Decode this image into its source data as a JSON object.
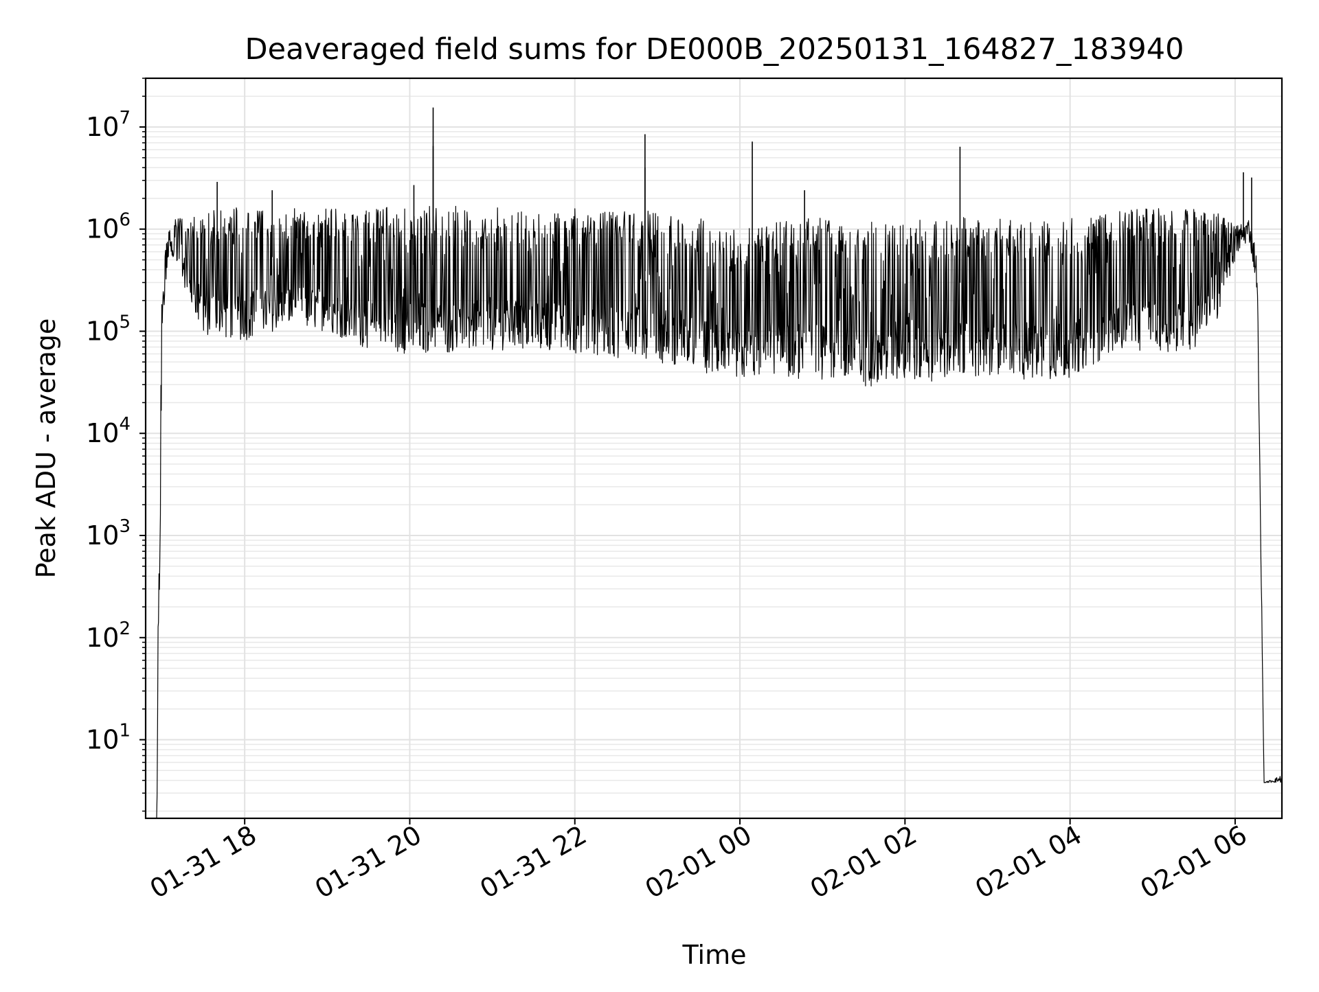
{
  "chart_data": {
    "type": "line",
    "title": "Deaveraged field sums for DE000B_20250131_164827_183940",
    "xlabel": "Time",
    "ylabel": "Peak ADU - average",
    "yscale": "log",
    "ylim": [
      1.7,
      30000000
    ],
    "xlim": [
      "2025-01-31 16:48",
      "2025-02-01 06:34"
    ],
    "grid": "major and minor",
    "legend": "none",
    "line_color": "#000000",
    "x_ticks": [
      {
        "t": "2025-01-31 18:00",
        "label": "01-31 18"
      },
      {
        "t": "2025-01-31 20:00",
        "label": "01-31 20"
      },
      {
        "t": "2025-01-31 22:00",
        "label": "01-31 22"
      },
      {
        "t": "2025-02-01 00:00",
        "label": "02-01 00"
      },
      {
        "t": "2025-02-01 02:00",
        "label": "02-01 02"
      },
      {
        "t": "2025-02-01 04:00",
        "label": "02-01 04"
      },
      {
        "t": "2025-02-01 06:00",
        "label": "02-01 06"
      }
    ],
    "y_ticks": [
      {
        "value": 10,
        "base": "10",
        "exp": "1"
      },
      {
        "value": 100,
        "base": "10",
        "exp": "2"
      },
      {
        "value": 1000,
        "base": "10",
        "exp": "3"
      },
      {
        "value": 10000,
        "base": "10",
        "exp": "4"
      },
      {
        "value": 100000,
        "base": "10",
        "exp": "5"
      },
      {
        "value": 1000000,
        "base": "10",
        "exp": "6"
      },
      {
        "value": 10000000,
        "base": "10",
        "exp": "7"
      }
    ],
    "series": [
      {
        "color": "#000000",
        "envelope": [
          {
            "t": "2025-01-31 16:56",
            "low": 1.7,
            "high": 1.7
          },
          {
            "t": "2025-01-31 16:57",
            "low": 3.8,
            "high": 140
          },
          {
            "t": "2025-01-31 17:00",
            "low": 100000,
            "high": 500000
          },
          {
            "t": "2025-01-31 17:05",
            "low": 600000,
            "high": 1200000
          },
          {
            "t": "2025-01-31 17:15",
            "low": 300000,
            "high": 1300000
          },
          {
            "t": "2025-01-31 17:30",
            "low": 90000,
            "high": 1500000
          },
          {
            "t": "2025-01-31 18:00",
            "low": 80000,
            "high": 1700000
          },
          {
            "t": "2025-01-31 18:30",
            "low": 110000,
            "high": 1600000
          },
          {
            "t": "2025-01-31 19:00",
            "low": 100000,
            "high": 1600000
          },
          {
            "t": "2025-01-31 19:30",
            "low": 65000,
            "high": 1600000
          },
          {
            "t": "2025-01-31 20:00",
            "low": 60000,
            "high": 1700000
          },
          {
            "t": "2025-01-31 20:30",
            "low": 60000,
            "high": 1700000
          },
          {
            "t": "2025-01-31 21:00",
            "low": 65000,
            "high": 1650000
          },
          {
            "t": "2025-01-31 21:30",
            "low": 65000,
            "high": 1600000
          },
          {
            "t": "2025-01-31 22:00",
            "low": 60000,
            "high": 1600000
          },
          {
            "t": "2025-01-31 22:30",
            "low": 55000,
            "high": 1500000
          },
          {
            "t": "2025-01-31 23:00",
            "low": 50000,
            "high": 1500000
          },
          {
            "t": "2025-01-31 23:30",
            "low": 40000,
            "high": 1400000
          },
          {
            "t": "2025-01-31 23:45",
            "low": 35000,
            "high": 1000000
          },
          {
            "t": "2025-02-01 00:00",
            "low": 32000,
            "high": 1000000
          },
          {
            "t": "2025-02-01 00:30",
            "low": 35000,
            "high": 1200000
          },
          {
            "t": "2025-02-01 01:00",
            "low": 33000,
            "high": 1300000
          },
          {
            "t": "2025-02-01 01:30",
            "low": 28000,
            "high": 1200000
          },
          {
            "t": "2025-02-01 02:00",
            "low": 33000,
            "high": 1200000
          },
          {
            "t": "2025-02-01 02:30",
            "low": 32000,
            "high": 1300000
          },
          {
            "t": "2025-02-01 03:00",
            "low": 35000,
            "high": 1300000
          },
          {
            "t": "2025-02-01 03:30",
            "low": 32000,
            "high": 1200000
          },
          {
            "t": "2025-02-01 04:00",
            "low": 35000,
            "high": 1300000
          },
          {
            "t": "2025-02-01 04:30",
            "low": 60000,
            "high": 1500000
          },
          {
            "t": "2025-02-01 05:00",
            "low": 65000,
            "high": 1600000
          },
          {
            "t": "2025-02-01 05:30",
            "low": 60000,
            "high": 1600000
          },
          {
            "t": "2025-02-01 05:50",
            "low": 150000,
            "high": 1400000
          },
          {
            "t": "2025-02-01 06:00",
            "low": 500000,
            "high": 1100000
          },
          {
            "t": "2025-02-01 06:10",
            "low": 800000,
            "high": 1300000
          },
          {
            "t": "2025-02-01 06:16",
            "low": 250000,
            "high": 600000
          },
          {
            "t": "2025-02-01 06:21",
            "low": 3.8,
            "high": 3.8
          },
          {
            "t": "2025-02-01 06:34",
            "low": 3.8,
            "high": 4.5
          }
        ],
        "spikes": [
          {
            "t": "2025-01-31 20:17",
            "value": 15500000
          },
          {
            "t": "2025-01-31 20:17",
            "value": 6500000
          },
          {
            "t": "2025-01-31 20:03",
            "value": 2700000
          },
          {
            "t": "2025-01-31 17:40",
            "value": 2900000
          },
          {
            "t": "2025-01-31 18:20",
            "value": 2400000
          },
          {
            "t": "2025-01-31 22:51",
            "value": 8500000
          },
          {
            "t": "2025-01-31 22:51",
            "value": 4000000
          },
          {
            "t": "2025-02-01 00:09",
            "value": 7200000
          },
          {
            "t": "2025-02-01 00:47",
            "value": 2400000
          },
          {
            "t": "2025-02-01 02:40",
            "value": 6400000
          },
          {
            "t": "2025-02-01 06:06",
            "value": 3600000
          },
          {
            "t": "2025-02-01 06:12",
            "value": 3200000
          }
        ]
      }
    ]
  }
}
